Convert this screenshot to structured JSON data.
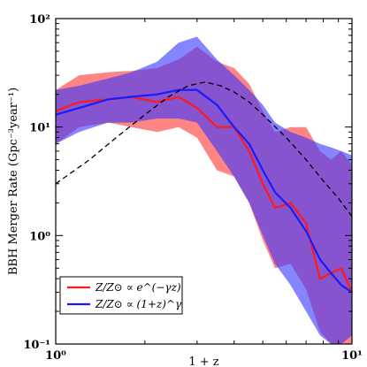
{
  "chart_data": {
    "type": "line",
    "xlabel": "1 + z",
    "ylabel": "BBH Merger Rate (Gpc⁻³year⁻¹)",
    "xscale": "log",
    "yscale": "log",
    "xlim": [
      1,
      10
    ],
    "ylim": [
      0.1,
      100
    ],
    "x_ticks": [
      {
        "value": 1,
        "label": "10⁰"
      },
      {
        "value": 10,
        "label": "10¹"
      }
    ],
    "y_ticks": [
      {
        "value": 0.1,
        "label": "10⁻¹"
      },
      {
        "value": 1,
        "label": "10⁰"
      },
      {
        "value": 10,
        "label": "10¹"
      },
      {
        "value": 100,
        "label": "10²"
      }
    ],
    "legend_position": "bottom-left",
    "series": [
      {
        "name": "Z/Z⊙ ∝ e^(−γz)",
        "color": "#ff1a1a",
        "band_color": "#ff3333",
        "x": [
          1.0,
          1.2,
          1.5,
          1.8,
          2.2,
          2.6,
          3.0,
          3.5,
          4.0,
          4.5,
          5.0,
          5.5,
          6.2,
          7.0,
          7.8,
          8.5,
          9.2,
          10.0
        ],
        "values": [
          14,
          17,
          18,
          19,
          17,
          19,
          15,
          10,
          10,
          6,
          3.0,
          1.8,
          2.0,
          1.3,
          0.4,
          0.45,
          0.5,
          0.3
        ],
        "lower": [
          7,
          10,
          11,
          10,
          9,
          10,
          8,
          4,
          3.5,
          2,
          0.9,
          0.5,
          0.55,
          0.32,
          0.13,
          0.1,
          0.1,
          0.1
        ],
        "upper": [
          22,
          30,
          32,
          33,
          35,
          42,
          55,
          40,
          35,
          25,
          14,
          9,
          10,
          10,
          6,
          5,
          6,
          4.5
        ]
      },
      {
        "name": "Z/Z⊙ ∝ (1+z)^γ",
        "color": "#1a1aff",
        "band_color": "#3333ff",
        "x": [
          1.0,
          1.2,
          1.5,
          1.8,
          2.2,
          2.6,
          3.0,
          3.5,
          4.0,
          4.5,
          5.0,
          5.5,
          6.2,
          7.0,
          7.8,
          8.5,
          9.2,
          10.0
        ],
        "values": [
          13,
          15,
          18,
          19,
          20,
          22,
          22,
          16,
          10,
          7,
          4.0,
          2.5,
          1.8,
          1.1,
          0.6,
          0.45,
          0.35,
          0.3
        ],
        "lower": [
          7,
          9,
          11,
          11,
          12,
          12,
          11,
          6,
          3.5,
          2,
          1.0,
          0.55,
          0.35,
          0.2,
          0.12,
          0.1,
          0.1,
          0.12
        ],
        "upper": [
          22,
          24,
          28,
          32,
          40,
          60,
          68,
          42,
          30,
          22,
          16,
          11,
          9,
          8,
          7,
          6.5,
          6,
          5.5
        ]
      },
      {
        "name": "",
        "color": "#000000",
        "style": "dashed",
        "x": [
          1.0,
          1.3,
          1.6,
          2.0,
          2.4,
          2.8,
          3.2,
          3.6,
          4.0,
          4.5,
          5.0,
          6.0,
          7.0,
          8.0,
          9.0,
          10.0
        ],
        "values": [
          3.0,
          5.0,
          8.0,
          13.0,
          19.0,
          24.0,
          26.0,
          24.0,
          21.0,
          17.0,
          13.0,
          8.0,
          5.0,
          3.2,
          2.2,
          1.5
        ]
      }
    ]
  }
}
